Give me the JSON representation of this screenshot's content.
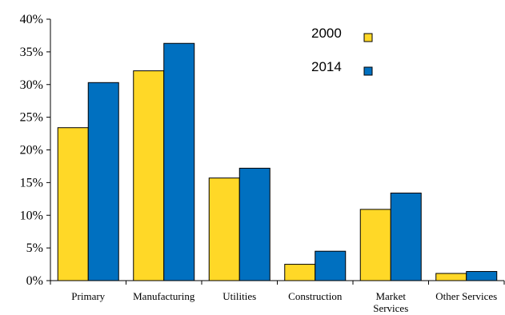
{
  "chart_data": {
    "type": "bar",
    "categories": [
      "Primary",
      "Manufacturing",
      "Utilities",
      "Construction",
      "Market Services",
      "Other Services"
    ],
    "category_lines": [
      [
        "Primary"
      ],
      [
        "Manufacturing"
      ],
      [
        "Utilities"
      ],
      [
        "Construction"
      ],
      [
        "Market",
        "Services"
      ],
      [
        "Other Services"
      ]
    ],
    "series": [
      {
        "name": "2000",
        "values": [
          23.4,
          32.1,
          15.7,
          2.5,
          10.9,
          1.1
        ],
        "color": "#FFD827"
      },
      {
        "name": "2014",
        "values": [
          30.3,
          36.3,
          17.2,
          4.5,
          13.4,
          1.4
        ],
        "color": "#0070C0"
      }
    ],
    "ylim": [
      0,
      40
    ],
    "yticks": [
      0,
      5,
      10,
      15,
      20,
      25,
      30,
      35,
      40
    ],
    "ytick_labels": [
      "0%",
      "5%",
      "10%",
      "15%",
      "20%",
      "25%",
      "30%",
      "35%",
      "40%"
    ],
    "y_unit": "%",
    "xlabel": "",
    "ylabel": "",
    "title": "",
    "legend_position": "top-right",
    "grid": false
  }
}
